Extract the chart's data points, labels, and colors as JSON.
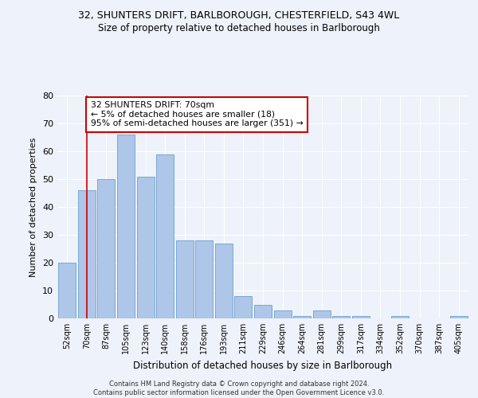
{
  "title1": "32, SHUNTERS DRIFT, BARLBOROUGH, CHESTERFIELD, S43 4WL",
  "title2": "Size of property relative to detached houses in Barlborough",
  "xlabel": "Distribution of detached houses by size in Barlborough",
  "ylabel": "Number of detached properties",
  "categories": [
    "52sqm",
    "70sqm",
    "87sqm",
    "105sqm",
    "123sqm",
    "140sqm",
    "158sqm",
    "176sqm",
    "193sqm",
    "211sqm",
    "229sqm",
    "246sqm",
    "264sqm",
    "281sqm",
    "299sqm",
    "317sqm",
    "334sqm",
    "352sqm",
    "370sqm",
    "387sqm",
    "405sqm"
  ],
  "values": [
    20,
    46,
    50,
    66,
    51,
    59,
    28,
    28,
    27,
    8,
    5,
    3,
    1,
    3,
    1,
    1,
    0,
    1,
    0,
    0,
    1
  ],
  "bar_color": "#aec6e8",
  "bar_edge_color": "#6aa0cc",
  "ylim": [
    0,
    80
  ],
  "yticks": [
    0,
    10,
    20,
    30,
    40,
    50,
    60,
    70,
    80
  ],
  "annotation_text": "32 SHUNTERS DRIFT: 70sqm\n← 5% of detached houses are smaller (18)\n95% of semi-detached houses are larger (351) →",
  "annotation_box_color": "#ffffff",
  "annotation_border_color": "#cc0000",
  "vline_color": "#cc0000",
  "vline_x_index": 1,
  "footer": "Contains HM Land Registry data © Crown copyright and database right 2024.\nContains public sector information licensed under the Open Government Licence v3.0.",
  "background_color": "#eef2fa"
}
